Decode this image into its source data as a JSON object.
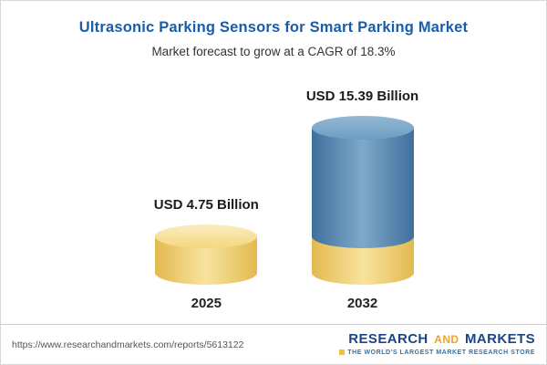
{
  "chart_data": {
    "type": "bar",
    "title": "Ultrasonic Parking Sensors for Smart Parking Market",
    "subtitle": "Market forecast to grow at a CAGR of 18.3%",
    "cagr_percent": 18.3,
    "unit": "USD Billion",
    "categories": [
      "2025",
      "2032"
    ],
    "values": [
      4.75,
      15.39
    ],
    "value_labels": [
      "USD 4.75 Billion",
      "USD 15.39 Billion"
    ],
    "style": "3d-cylinder",
    "layout": {
      "legend": false,
      "gridlines": false,
      "bar_2032_base_segment_value": 4.75
    },
    "colors": {
      "title_blue": "#1a5da6",
      "bar_gold": "#f0ce6e",
      "bar_blue": "#4e81ae"
    }
  },
  "footer": {
    "url": "https://www.researchandmarkets.com/reports/5613122",
    "brand": {
      "part1": "RESEARCH",
      "part2": "AND",
      "part3": "MARKETS",
      "tagline": "THE WORLD'S LARGEST MARKET RESEARCH STORE",
      "navy": "#1c4587",
      "gold": "#f0a32c"
    }
  }
}
